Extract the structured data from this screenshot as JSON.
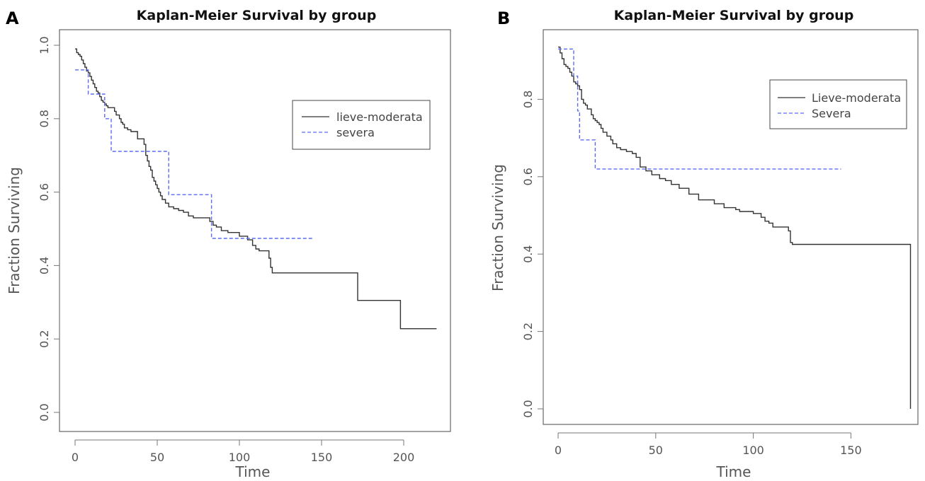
{
  "panels": [
    {
      "letter": "A",
      "title": "Kaplan-Meier Survival by group",
      "xlabel": "Time",
      "ylabel": "Fraction Surviving",
      "x_ticks": [
        "0",
        "50",
        "100",
        "150",
        "200"
      ],
      "y_ticks": [
        "0.0",
        "0.2",
        "0.4",
        "0.6",
        "0.8",
        "1.0"
      ],
      "legend": [
        "lieve-moderata",
        "severa"
      ]
    },
    {
      "letter": "B",
      "title": "Kaplan-Meier Survival by group",
      "xlabel": "Time",
      "ylabel": "Fraction Surviving",
      "x_ticks": [
        "0",
        "50",
        "100",
        "150"
      ],
      "y_ticks": [
        "0.0",
        "0.2",
        "0.4",
        "0.6",
        "0.8"
      ],
      "legend": [
        "Lieve-moderata",
        "Severa"
      ]
    }
  ],
  "colors": {
    "series1": "#333333",
    "series2": "#5b6cf0"
  },
  "chart_data": [
    {
      "type": "line",
      "step": true,
      "title": "Kaplan-Meier Survival by group",
      "xlabel": "Time",
      "ylabel": "Fraction Surviving",
      "xlim": [
        0,
        220
      ],
      "ylim": [
        0.0,
        1.0
      ],
      "x_ticks": [
        0,
        50,
        100,
        150,
        200
      ],
      "y_ticks": [
        0.0,
        0.2,
        0.4,
        0.6,
        0.8,
        1.0
      ],
      "legend_position": "top-right",
      "series": [
        {
          "name": "lieve-moderata",
          "style": "solid",
          "x": [
            0,
            1,
            2,
            3,
            4,
            5,
            6,
            7,
            8,
            9,
            10,
            11,
            12,
            13,
            14,
            15,
            16,
            17,
            18,
            19,
            20,
            22,
            24,
            25,
            27,
            28,
            29,
            30,
            32,
            34,
            36,
            38,
            42,
            43,
            44,
            45,
            46,
            47,
            48,
            49,
            50,
            51,
            52,
            53,
            55,
            57,
            60,
            63,
            66,
            69,
            72,
            82,
            84,
            86,
            89,
            93,
            100,
            105,
            108,
            110,
            112,
            118,
            119,
            120,
            172,
            198,
            220
          ],
          "y": [
            0.99,
            0.98,
            0.975,
            0.97,
            0.96,
            0.95,
            0.94,
            0.93,
            0.925,
            0.915,
            0.905,
            0.895,
            0.885,
            0.875,
            0.87,
            0.86,
            0.85,
            0.845,
            0.84,
            0.835,
            0.83,
            0.83,
            0.82,
            0.81,
            0.8,
            0.79,
            0.785,
            0.775,
            0.77,
            0.765,
            0.765,
            0.745,
            0.73,
            0.7,
            0.685,
            0.67,
            0.66,
            0.64,
            0.63,
            0.62,
            0.61,
            0.6,
            0.59,
            0.58,
            0.57,
            0.56,
            0.555,
            0.55,
            0.545,
            0.535,
            0.53,
            0.52,
            0.51,
            0.505,
            0.495,
            0.49,
            0.48,
            0.47,
            0.455,
            0.445,
            0.44,
            0.42,
            0.395,
            0.38,
            0.305,
            0.228,
            0.228
          ]
        },
        {
          "name": "severa",
          "style": "dashed",
          "x": [
            0,
            8,
            18,
            22,
            57,
            83,
            145
          ],
          "y": [
            0.933,
            0.867,
            0.8,
            0.711,
            0.593,
            0.474,
            0.474
          ]
        }
      ]
    },
    {
      "type": "line",
      "step": true,
      "title": "Kaplan-Meier Survival by group",
      "xlabel": "Time",
      "ylabel": "Fraction Surviving",
      "xlim": [
        0,
        185
      ],
      "ylim": [
        0.0,
        0.94
      ],
      "x_ticks": [
        0,
        50,
        100,
        150
      ],
      "y_ticks": [
        0.0,
        0.2,
        0.4,
        0.6,
        0.8
      ],
      "legend_position": "top-right",
      "series": [
        {
          "name": "Lieve-moderata",
          "style": "solid",
          "x": [
            0,
            1,
            2,
            3,
            4,
            5,
            6,
            7,
            8,
            9,
            10,
            11,
            12,
            13,
            14,
            15,
            17,
            18,
            19,
            20,
            21,
            22,
            23,
            25,
            27,
            28,
            30,
            32,
            35,
            38,
            40,
            42,
            45,
            48,
            52,
            55,
            58,
            62,
            67,
            72,
            80,
            85,
            91,
            93,
            100,
            104,
            106,
            108,
            110,
            118,
            119,
            120,
            180,
            180.5
          ],
          "y": [
            0.935,
            0.92,
            0.905,
            0.89,
            0.885,
            0.88,
            0.87,
            0.86,
            0.845,
            0.84,
            0.835,
            0.825,
            0.8,
            0.79,
            0.785,
            0.775,
            0.76,
            0.75,
            0.745,
            0.74,
            0.735,
            0.725,
            0.715,
            0.705,
            0.695,
            0.685,
            0.675,
            0.67,
            0.665,
            0.66,
            0.65,
            0.625,
            0.615,
            0.605,
            0.595,
            0.59,
            0.58,
            0.57,
            0.555,
            0.54,
            0.53,
            0.52,
            0.515,
            0.51,
            0.505,
            0.495,
            0.485,
            0.48,
            0.47,
            0.46,
            0.43,
            0.425,
            0.425,
            0.0
          ]
        },
        {
          "name": "Severa",
          "style": "dashed",
          "x": [
            0,
            8,
            10,
            11,
            19,
            145
          ],
          "y": [
            0.93,
            0.86,
            0.77,
            0.695,
            0.62,
            0.62
          ]
        }
      ]
    }
  ]
}
